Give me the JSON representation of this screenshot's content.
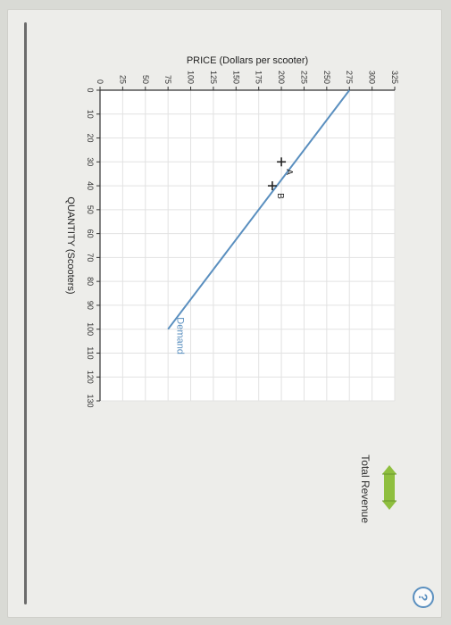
{
  "chart": {
    "type": "line",
    "x_axis": {
      "label": "QUANTITY (Scooters)",
      "min": 0,
      "max": 130,
      "tick_step": 10,
      "ticks": [
        0,
        10,
        20,
        30,
        40,
        50,
        60,
        70,
        80,
        90,
        100,
        110,
        120,
        130
      ],
      "label_fontsize": 11,
      "tick_fontsize": 9
    },
    "y_axis": {
      "label": "PRICE (Dollars per scooter)",
      "min": 0,
      "max": 325,
      "tick_step": 25,
      "ticks": [
        0,
        25,
        50,
        75,
        100,
        125,
        150,
        175,
        200,
        225,
        250,
        275,
        300,
        325
      ],
      "label_fontsize": 11,
      "tick_fontsize": 9
    },
    "plot": {
      "width_units": 130,
      "height_units": 325,
      "background": "#ffffff",
      "grid_color": "#e2e2e2",
      "axis_color": "#333333"
    },
    "series": {
      "demand": {
        "label": "Demand",
        "color": "#5a8fbf",
        "line_width": 2,
        "points": [
          {
            "x": 0,
            "y": 275
          },
          {
            "x": 100,
            "y": 75
          }
        ],
        "label_pos": {
          "x": 95,
          "y": 85
        }
      }
    },
    "markers": [
      {
        "id": "A",
        "x": 30,
        "y": 200,
        "label": "A",
        "symbol": "plus",
        "color": "#222222"
      },
      {
        "id": "B",
        "x": 40,
        "y": 190,
        "label": "B",
        "symbol": "plus",
        "color": "#222222"
      }
    ]
  },
  "legend": {
    "icon_color": "#8fbf3f",
    "label": "Total Revenue"
  },
  "help_label": "?"
}
